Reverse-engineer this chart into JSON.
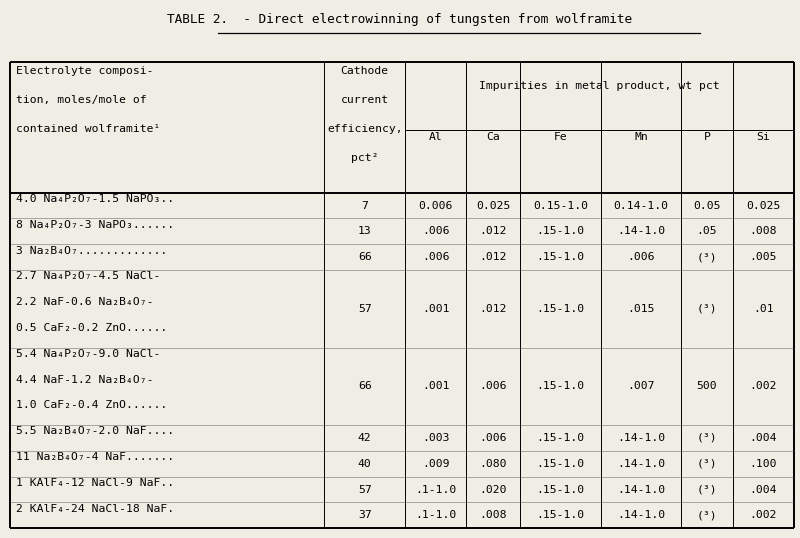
{
  "title_prefix": "TABLE 2.  - ",
  "title_underlined": "Direct electrowinning of tungsten from wolframite",
  "bg_color": "#f0ede4",
  "font_family": "DejaVu Sans Mono",
  "figsize": [
    8.0,
    5.38
  ],
  "dpi": 100,
  "col_widths_rel": [
    3.2,
    0.82,
    0.62,
    0.55,
    0.82,
    0.82,
    0.52,
    0.62
  ],
  "header": {
    "col0_lines": [
      "Electrolyte composi-",
      "tion, moles/mole of",
      "contained wolframite¹"
    ],
    "col1_lines": [
      "Cathode",
      "current",
      "efficiency,",
      "pct²"
    ],
    "impurities_label": "Impurities in metal product, wt pct",
    "sub_headers": [
      "Al",
      "Ca",
      "Fe",
      "Mn",
      "P",
      "Si"
    ]
  },
  "data_groups": [
    {
      "elec_lines": [
        "4.0 Na₄P₂O₇-1.5 NaPO₃.."
      ],
      "eff": "7",
      "Al": "0.006",
      "Ca": "0.025",
      "Fe": "0.15-1.0",
      "Mn": "0.14-1.0",
      "P": "0.05",
      "Si": "0.025"
    },
    {
      "elec_lines": [
        "8 Na₄P₂O₇-3 NaPO₃......"
      ],
      "eff": "13",
      "Al": ".006",
      "Ca": ".012",
      "Fe": ".15-1.0",
      "Mn": ".14-1.0",
      "P": ".05",
      "Si": ".008"
    },
    {
      "elec_lines": [
        "3 Na₂B₄O₇............."
      ],
      "eff": "66",
      "Al": ".006",
      "Ca": ".012",
      "Fe": ".15-1.0",
      "Mn": ".006",
      "P": "(³)",
      "Si": ".005"
    },
    {
      "elec_lines": [
        "2.7 Na₄P₂O₇-4.5 NaCl-",
        "2.2 NaF-0.6 Na₂B₄O₇-",
        "0.5 CaF₂-0.2 ZnO......"
      ],
      "eff": "57",
      "Al": ".001",
      "Ca": ".012",
      "Fe": ".15-1.0",
      "Mn": ".015",
      "P": "(³)",
      "Si": ".01"
    },
    {
      "elec_lines": [
        "5.4 Na₄P₂O₇-9.0 NaCl-",
        "4.4 NaF-1.2 Na₂B₄O₇-",
        "1.0 CaF₂-0.4 ZnO......"
      ],
      "eff": "66",
      "Al": ".001",
      "Ca": ".006",
      "Fe": ".15-1.0",
      "Mn": ".007",
      "P": "500",
      "Si": ".002"
    },
    {
      "elec_lines": [
        "5.5 Na₂B₄O₇-2.0 NaF...."
      ],
      "eff": "42",
      "Al": ".003",
      "Ca": ".006",
      "Fe": ".15-1.0",
      "Mn": ".14-1.0",
      "P": "(³)",
      "Si": ".004"
    },
    {
      "elec_lines": [
        "11 Na₂B₄O₇-4 NaF......."
      ],
      "eff": "40",
      "Al": ".009",
      "Ca": ".080",
      "Fe": ".15-1.0",
      "Mn": ".14-1.0",
      "P": "(³)",
      "Si": ".100"
    },
    {
      "elec_lines": [
        "1 KAlF₄-12 NaCl-9 NaF.."
      ],
      "eff": "57",
      "Al": ".1-1.0",
      "Ca": ".020",
      "Fe": ".15-1.0",
      "Mn": ".14-1.0",
      "P": "(³)",
      "Si": ".004"
    },
    {
      "elec_lines": [
        "2 KAlF₄-24 NaCl-18 NaF."
      ],
      "eff": "37",
      "Al": ".1-1.0",
      "Ca": ".008",
      "Fe": ".15-1.0",
      "Mn": ".14-1.0",
      "P": "(³)",
      "Si": ".002"
    }
  ]
}
